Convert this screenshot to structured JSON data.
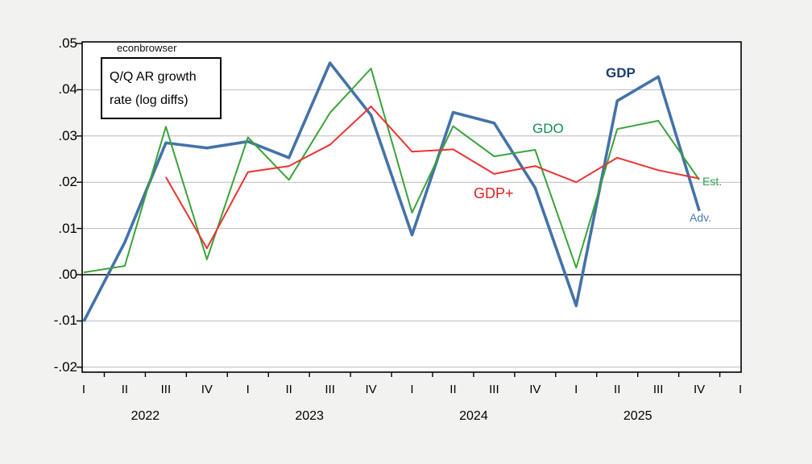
{
  "watermark": "econbrowser",
  "note_box": {
    "line1": "Q/Q AR growth",
    "line2": "rate (log diffs)"
  },
  "chart_data": {
    "type": "line",
    "title": "Q/Q AR growth rate (log diffs)",
    "xlabel": "",
    "ylabel": "",
    "x_quarter_labels": [
      "I",
      "II",
      "III",
      "IV",
      "I",
      "II",
      "III",
      "IV",
      "I",
      "II",
      "III",
      "IV",
      "I",
      "II",
      "III",
      "IV",
      "I"
    ],
    "year_labels": [
      "2022",
      "2023",
      "2024",
      "2025"
    ],
    "y_tick_labels": [
      ".05",
      ".04",
      ".03",
      ".02",
      ".01",
      ".00",
      "-.01",
      "-.02"
    ],
    "y_tick_values": [
      0.05,
      0.04,
      0.03,
      0.02,
      0.01,
      0.0,
      -0.01,
      -0.02
    ],
    "ylim": [
      -0.021,
      0.0505
    ],
    "grid_values": [
      0.04,
      0.03,
      0.02,
      0.01,
      -0.01,
      -0.02
    ],
    "zero_line_value": 0.0,
    "legend_position": "inline-annotations",
    "grid": true,
    "colors": {
      "background": "#f2f3f1",
      "plot_background": "#ffffff",
      "gridline": "#b9b9b9",
      "axis": "#000000"
    },
    "series": [
      {
        "name": "GDP",
        "color": "#4472a8",
        "width": 3.6,
        "values": [
          -0.0101,
          0.007,
          0.0285,
          0.0274,
          0.0288,
          0.0253,
          0.0458,
          0.0345,
          0.0086,
          0.0351,
          0.0328,
          0.0188,
          -0.0067,
          0.0376,
          0.0428,
          0.0138
        ]
      },
      {
        "name": "GDO",
        "color": "#3aa33a",
        "width": 2,
        "values": [
          0.0005,
          0.0019,
          0.032,
          0.0033,
          0.0297,
          0.0205,
          0.035,
          0.0446,
          0.0134,
          0.0321,
          0.0256,
          0.027,
          0.0015,
          0.0315,
          0.0333,
          0.0205
        ]
      },
      {
        "name": "GDP+",
        "color": "#ee3330",
        "width": 2,
        "values": [
          null,
          null,
          0.0211,
          0.0057,
          0.0222,
          0.0235,
          0.0281,
          0.0364,
          0.0266,
          0.0271,
          0.0218,
          0.0235,
          0.02,
          0.0253,
          0.0226,
          0.0208
        ]
      }
    ],
    "annotations": [
      {
        "id": "gdp",
        "text": "GDP",
        "color": "#1c3e6d"
      },
      {
        "id": "gdo",
        "text": "GDO",
        "color": "#12904f"
      },
      {
        "id": "gdpplus",
        "text": "GDP+",
        "color": "#e02020"
      },
      {
        "id": "est",
        "text": "Est.",
        "color": "#2f9e4e"
      },
      {
        "id": "adv",
        "text": "Adv.",
        "color": "#4a7ab5"
      }
    ]
  }
}
